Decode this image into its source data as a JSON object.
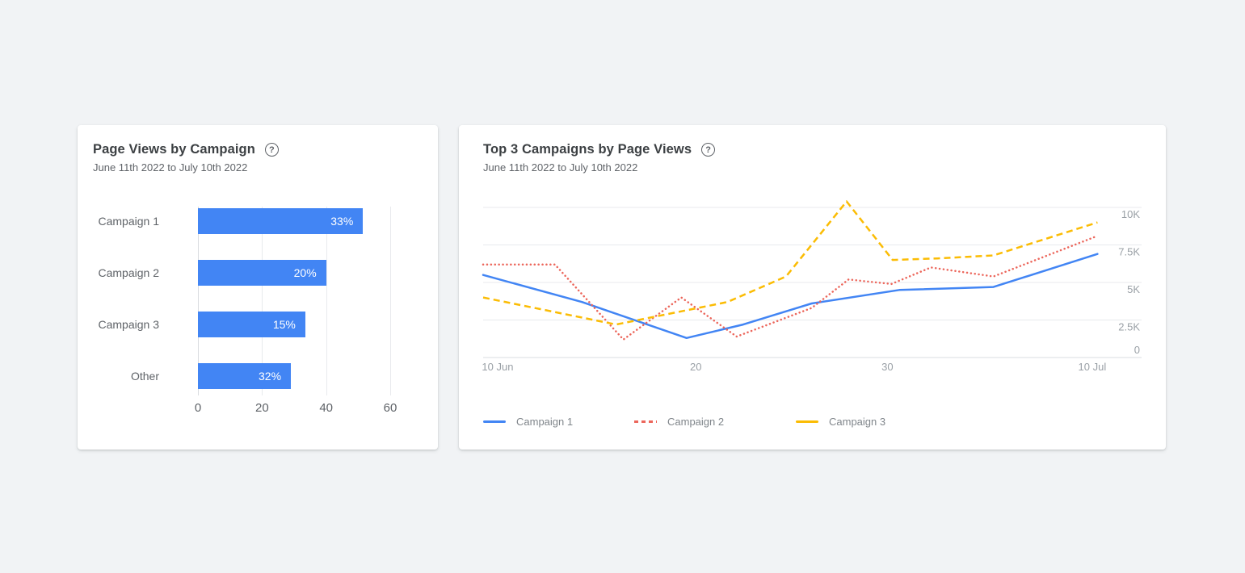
{
  "ui": {
    "page_bg": "#F1F3F5",
    "card_bg": "#FFFFFF",
    "title_color": "#3C4043",
    "subtitle_color": "#5F6368",
    "grid_color": "#E8EAED",
    "axis_line_color": "#DADCE0",
    "y_tick_label_color": "#9AA0A6",
    "x_tick_label_color": "#9AA0A6",
    "bar_tick_label_color": "#5F6368",
    "legend_label_color": "#80868B",
    "help_glyph": "?"
  },
  "chart_data": [
    {
      "type": "bar",
      "orientation": "horizontal",
      "title": "Page Views by Campaign",
      "subtitle": "June 11th 2022 to July 10th 2022",
      "categories": [
        "Campaign 1",
        "Campaign 2",
        "Campaign 3",
        "Other"
      ],
      "bar_labels": [
        "33%",
        "20%",
        "15%",
        "32%"
      ],
      "bar_values_pct": [
        33,
        20,
        15,
        32
      ],
      "bar_lengths_axis_units": [
        51.5,
        40,
        33.5,
        29
      ],
      "xlim": [
        0,
        60
      ],
      "x_ticks": [
        0,
        20,
        40,
        60
      ],
      "bar_color": "#4285F4",
      "grid": true,
      "legend_position": "none"
    },
    {
      "type": "line",
      "title": "Top 3 Campaigns by Page Views",
      "subtitle": "June 11th 2022 to July 10th 2022",
      "ylim": [
        0,
        10000
      ],
      "y_ticks": [
        0,
        2500,
        5000,
        7500,
        10000
      ],
      "y_tick_labels": [
        "0",
        "2.5K",
        "5K",
        "7.5K",
        "10K"
      ],
      "y_axis_position": "right",
      "x_ticks": [
        {
          "label": "10 Jun",
          "pos": 0.022
        },
        {
          "label": "20",
          "pos": 0.323
        },
        {
          "label": "30",
          "pos": 0.614
        },
        {
          "label": "10 Jul",
          "pos": 0.925
        }
      ],
      "grid": true,
      "legend_position": "bottom",
      "series": [
        {
          "name": "Campaign 1",
          "color": "#4285F4",
          "line_style": "solid",
          "points": [
            [
              0,
              5500
            ],
            [
              0.15,
              3700
            ],
            [
              0.309,
              1300
            ],
            [
              0.395,
              2200
            ],
            [
              0.499,
              3600
            ],
            [
              0.632,
              4500
            ],
            [
              0.775,
              4700
            ],
            [
              0.933,
              6900
            ]
          ]
        },
        {
          "name": "Campaign 2",
          "color": "#EC665B",
          "line_style": "dotted",
          "points": [
            [
              0,
              6200
            ],
            [
              0.109,
              6200
            ],
            [
              0.213,
              1200
            ],
            [
              0.301,
              4000
            ],
            [
              0.385,
              1400
            ],
            [
              0.499,
              3300
            ],
            [
              0.555,
              5200
            ],
            [
              0.62,
              4900
            ],
            [
              0.68,
              6000
            ],
            [
              0.775,
              5400
            ],
            [
              0.933,
              8100
            ]
          ]
        },
        {
          "name": "Campaign 3",
          "color": "#FBBC04",
          "line_style": "dashed",
          "points": [
            [
              0,
              4000
            ],
            [
              0.202,
              2200
            ],
            [
              0.371,
              3700
            ],
            [
              0.46,
              5400
            ],
            [
              0.552,
              10400
            ],
            [
              0.622,
              6500
            ],
            [
              0.69,
              6600
            ],
            [
              0.775,
              6800
            ],
            [
              0.933,
              9000
            ]
          ]
        }
      ]
    }
  ]
}
